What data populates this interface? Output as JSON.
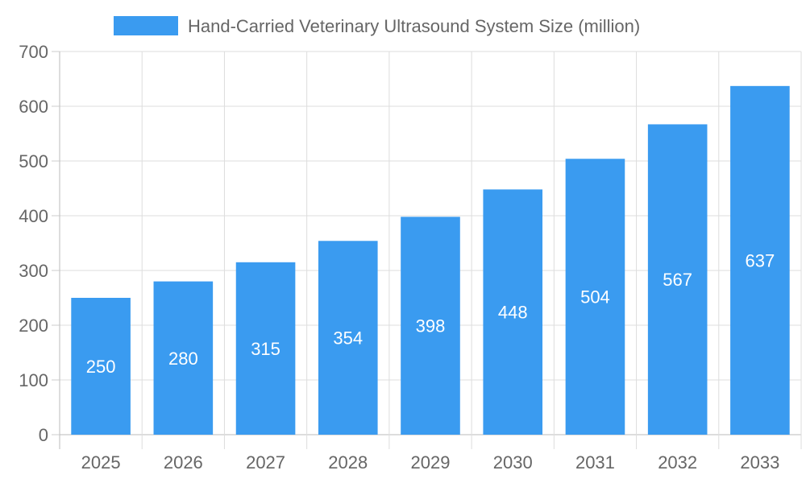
{
  "chart_data": {
    "type": "bar",
    "title": "",
    "xlabel": "",
    "ylabel": "",
    "categories": [
      "2025",
      "2026",
      "2027",
      "2028",
      "2029",
      "2030",
      "2031",
      "2032",
      "2033"
    ],
    "series": [
      {
        "name": "Hand-Carried Veterinary Ultrasound System Size (million)",
        "values": [
          250,
          280,
          315,
          354,
          398,
          448,
          504,
          567,
          637
        ],
        "color": "#3a9bf0"
      }
    ],
    "ylim": [
      0,
      700
    ],
    "yticks": [
      0,
      100,
      200,
      300,
      400,
      500,
      600,
      700
    ],
    "grid": true,
    "legend": "top",
    "data_labels": true
  }
}
